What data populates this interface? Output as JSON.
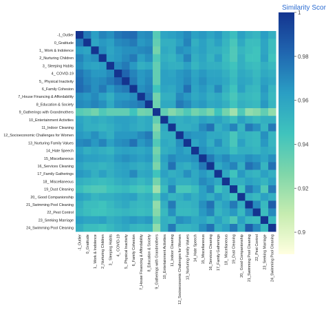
{
  "chart_data": {
    "type": "heatmap",
    "labels": [
      "-1_Outlier",
      "0_Gratitude",
      "1_ Work & Indolence",
      "2_Nurturing Children",
      "3_ Sleeping Habits",
      "4_ COVID-19",
      "5_ Physical Inactivity",
      "6_Family Cohesion",
      "7_House Financing & Affordability",
      "8_Education & Society",
      "9_Gatherings with Grandmothers",
      "10_Entertainment Activities",
      "11_Indoor Cleaning",
      "12_Socioeconomic Challenges for Women",
      "13_Nurturing Family Values",
      "14_Hate Speech",
      "15_Miscellaneous",
      "16_Services Cleaning",
      "17_Family Gatherings",
      "18_ Miscellaneous",
      "19_Dust Cleaning",
      "20_ Good Companionship",
      "21_Swimming Pool Cleaning",
      "22_Pest Control",
      "23_Seeking Marriage",
      "24_Swimming Pool Cleaning"
    ],
    "colorbar": {
      "title": "Similarity Score",
      "min": 0.89,
      "max": 1.0,
      "ticks": [
        0.9,
        0.92,
        0.94,
        0.96,
        0.98,
        1
      ],
      "colors": [
        "#ffffe0",
        "#c6ecb0",
        "#7fd6aa",
        "#3fc3bd",
        "#2a9ec4",
        "#2066b0",
        "#14348f"
      ]
    },
    "matrix": [
      [
        1.0,
        0.975,
        0.963,
        0.972,
        0.968,
        0.976,
        0.979,
        0.98,
        0.968,
        0.97,
        0.938,
        0.96,
        0.962,
        0.965,
        0.97,
        0.962,
        0.965,
        0.96,
        0.965,
        0.955,
        0.948,
        0.962,
        0.955,
        0.952,
        0.963,
        0.955
      ],
      [
        0.975,
        1.0,
        0.96,
        0.965,
        0.962,
        0.97,
        0.972,
        0.975,
        0.965,
        0.968,
        0.935,
        0.955,
        0.955,
        0.962,
        0.972,
        0.955,
        0.962,
        0.955,
        0.962,
        0.952,
        0.942,
        0.958,
        0.948,
        0.948,
        0.96,
        0.948
      ],
      [
        0.963,
        0.96,
        1.0,
        0.968,
        0.96,
        0.965,
        0.968,
        0.968,
        0.97,
        0.972,
        0.93,
        0.958,
        0.955,
        0.968,
        0.965,
        0.958,
        0.962,
        0.955,
        0.955,
        0.95,
        0.94,
        0.952,
        0.948,
        0.945,
        0.96,
        0.948
      ],
      [
        0.972,
        0.965,
        0.968,
        1.0,
        0.962,
        0.965,
        0.97,
        0.975,
        0.962,
        0.968,
        0.94,
        0.955,
        0.952,
        0.96,
        0.972,
        0.955,
        0.96,
        0.952,
        0.962,
        0.948,
        0.94,
        0.955,
        0.945,
        0.945,
        0.962,
        0.945
      ],
      [
        0.968,
        0.962,
        0.96,
        0.962,
        1.0,
        0.97,
        0.975,
        0.965,
        0.955,
        0.958,
        0.935,
        0.958,
        0.955,
        0.955,
        0.962,
        0.952,
        0.958,
        0.955,
        0.955,
        0.95,
        0.945,
        0.955,
        0.95,
        0.948,
        0.955,
        0.95
      ],
      [
        0.976,
        0.97,
        0.965,
        0.965,
        0.97,
        1.0,
        0.982,
        0.972,
        0.965,
        0.968,
        0.935,
        0.962,
        0.96,
        0.965,
        0.968,
        0.96,
        0.965,
        0.96,
        0.96,
        0.955,
        0.948,
        0.958,
        0.955,
        0.95,
        0.958,
        0.955
      ],
      [
        0.979,
        0.972,
        0.968,
        0.97,
        0.975,
        0.982,
        1.0,
        0.975,
        0.965,
        0.97,
        0.935,
        0.962,
        0.962,
        0.965,
        0.97,
        0.962,
        0.968,
        0.962,
        0.962,
        0.958,
        0.95,
        0.96,
        0.958,
        0.952,
        0.962,
        0.958
      ],
      [
        0.98,
        0.975,
        0.968,
        0.975,
        0.965,
        0.972,
        0.975,
        1.0,
        0.968,
        0.972,
        0.945,
        0.96,
        0.958,
        0.965,
        0.978,
        0.96,
        0.965,
        0.958,
        0.97,
        0.955,
        0.945,
        0.962,
        0.952,
        0.95,
        0.965,
        0.952
      ],
      [
        0.968,
        0.965,
        0.97,
        0.962,
        0.955,
        0.965,
        0.965,
        0.968,
        1.0,
        0.975,
        0.93,
        0.955,
        0.955,
        0.97,
        0.965,
        0.958,
        0.962,
        0.955,
        0.958,
        0.95,
        0.942,
        0.952,
        0.95,
        0.948,
        0.962,
        0.95
      ],
      [
        0.97,
        0.968,
        0.972,
        0.968,
        0.958,
        0.968,
        0.97,
        0.972,
        0.975,
        1.0,
        0.932,
        0.958,
        0.958,
        0.975,
        0.97,
        0.962,
        0.965,
        0.958,
        0.96,
        0.955,
        0.945,
        0.955,
        0.952,
        0.95,
        0.965,
        0.952
      ],
      [
        0.938,
        0.935,
        0.93,
        0.94,
        0.935,
        0.935,
        0.935,
        0.945,
        0.93,
        0.932,
        1.0,
        0.935,
        0.925,
        0.932,
        0.94,
        0.93,
        0.935,
        0.928,
        0.945,
        0.93,
        0.918,
        0.94,
        0.922,
        0.925,
        0.935,
        0.922
      ],
      [
        0.96,
        0.955,
        0.958,
        0.955,
        0.958,
        0.962,
        0.962,
        0.96,
        0.955,
        0.958,
        0.935,
        1.0,
        0.958,
        0.955,
        0.958,
        0.955,
        0.962,
        0.958,
        0.962,
        0.955,
        0.948,
        0.962,
        0.955,
        0.95,
        0.955,
        0.955
      ],
      [
        0.962,
        0.955,
        0.955,
        0.952,
        0.955,
        0.96,
        0.962,
        0.958,
        0.955,
        0.958,
        0.925,
        0.958,
        1.0,
        0.955,
        0.955,
        0.958,
        0.97,
        0.978,
        0.955,
        0.962,
        0.972,
        0.952,
        0.975,
        0.968,
        0.952,
        0.975
      ],
      [
        0.965,
        0.962,
        0.968,
        0.96,
        0.955,
        0.965,
        0.965,
        0.965,
        0.97,
        0.975,
        0.932,
        0.955,
        0.955,
        1.0,
        0.968,
        0.965,
        0.965,
        0.958,
        0.958,
        0.955,
        0.942,
        0.955,
        0.952,
        0.95,
        0.968,
        0.952
      ],
      [
        0.97,
        0.972,
        0.965,
        0.972,
        0.962,
        0.968,
        0.97,
        0.978,
        0.965,
        0.97,
        0.94,
        0.958,
        0.955,
        0.968,
        1.0,
        0.96,
        0.965,
        0.955,
        0.968,
        0.955,
        0.942,
        0.962,
        0.952,
        0.95,
        0.965,
        0.952
      ],
      [
        0.962,
        0.955,
        0.958,
        0.955,
        0.952,
        0.96,
        0.962,
        0.96,
        0.958,
        0.962,
        0.93,
        0.955,
        0.958,
        0.965,
        0.96,
        1.0,
        0.968,
        0.962,
        0.958,
        0.958,
        0.948,
        0.955,
        0.955,
        0.952,
        0.958,
        0.955
      ],
      [
        0.965,
        0.962,
        0.962,
        0.96,
        0.958,
        0.965,
        0.968,
        0.965,
        0.962,
        0.965,
        0.935,
        0.962,
        0.97,
        0.965,
        0.965,
        0.968,
        1.0,
        0.975,
        0.965,
        0.97,
        0.962,
        0.962,
        0.968,
        0.965,
        0.96,
        0.968
      ],
      [
        0.96,
        0.955,
        0.955,
        0.952,
        0.955,
        0.96,
        0.962,
        0.958,
        0.955,
        0.958,
        0.928,
        0.958,
        0.978,
        0.958,
        0.955,
        0.962,
        0.975,
        1.0,
        0.958,
        0.965,
        0.972,
        0.955,
        0.978,
        0.972,
        0.952,
        0.978
      ],
      [
        0.965,
        0.962,
        0.955,
        0.962,
        0.955,
        0.96,
        0.962,
        0.97,
        0.958,
        0.96,
        0.945,
        0.962,
        0.955,
        0.958,
        0.968,
        0.958,
        0.965,
        0.958,
        1.0,
        0.958,
        0.945,
        0.965,
        0.955,
        0.952,
        0.962,
        0.955
      ],
      [
        0.955,
        0.952,
        0.95,
        0.948,
        0.95,
        0.955,
        0.958,
        0.955,
        0.95,
        0.955,
        0.93,
        0.955,
        0.962,
        0.955,
        0.955,
        0.958,
        0.97,
        0.965,
        0.958,
        1.0,
        0.955,
        0.955,
        0.962,
        0.958,
        0.952,
        0.962
      ],
      [
        0.948,
        0.942,
        0.94,
        0.94,
        0.945,
        0.948,
        0.95,
        0.945,
        0.942,
        0.945,
        0.918,
        0.948,
        0.972,
        0.942,
        0.942,
        0.948,
        0.962,
        0.972,
        0.945,
        0.955,
        1.0,
        0.945,
        0.975,
        0.965,
        0.94,
        0.975
      ],
      [
        0.962,
        0.958,
        0.952,
        0.955,
        0.955,
        0.958,
        0.96,
        0.962,
        0.952,
        0.955,
        0.94,
        0.962,
        0.952,
        0.955,
        0.962,
        0.955,
        0.962,
        0.955,
        0.965,
        0.955,
        0.945,
        1.0,
        0.955,
        0.95,
        0.962,
        0.955
      ],
      [
        0.955,
        0.948,
        0.948,
        0.945,
        0.95,
        0.955,
        0.958,
        0.952,
        0.95,
        0.952,
        0.922,
        0.955,
        0.975,
        0.952,
        0.952,
        0.955,
        0.968,
        0.978,
        0.955,
        0.962,
        0.975,
        0.955,
        1.0,
        0.97,
        0.95,
        0.985
      ],
      [
        0.952,
        0.948,
        0.945,
        0.945,
        0.948,
        0.95,
        0.952,
        0.95,
        0.948,
        0.95,
        0.925,
        0.95,
        0.968,
        0.95,
        0.95,
        0.952,
        0.965,
        0.972,
        0.952,
        0.958,
        0.965,
        0.95,
        0.97,
        1.0,
        0.948,
        0.97
      ],
      [
        0.963,
        0.96,
        0.96,
        0.962,
        0.955,
        0.958,
        0.962,
        0.965,
        0.962,
        0.965,
        0.935,
        0.955,
        0.952,
        0.968,
        0.965,
        0.958,
        0.96,
        0.952,
        0.962,
        0.952,
        0.94,
        0.962,
        0.95,
        0.948,
        1.0,
        0.95
      ],
      [
        0.955,
        0.948,
        0.948,
        0.945,
        0.95,
        0.955,
        0.958,
        0.952,
        0.95,
        0.952,
        0.922,
        0.955,
        0.975,
        0.952,
        0.952,
        0.955,
        0.968,
        0.978,
        0.955,
        0.962,
        0.975,
        0.955,
        0.985,
        0.97,
        0.95,
        1.0
      ]
    ]
  }
}
